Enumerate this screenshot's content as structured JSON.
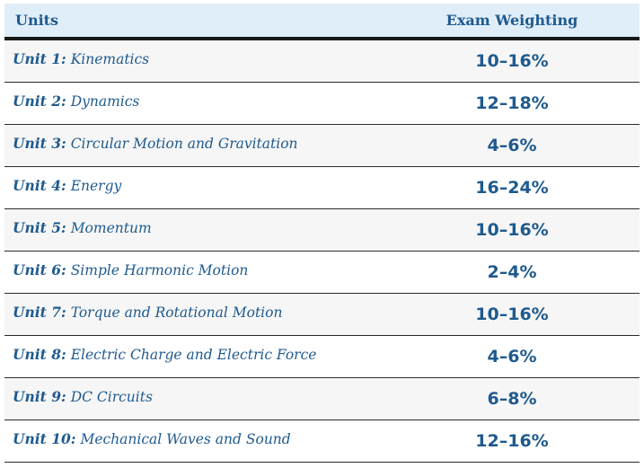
{
  "header": {
    "units_label": "Units",
    "weighting_label": "Exam Weighting"
  },
  "rows": [
    {
      "unit_number": "Unit 1:",
      "unit_title": "Kinematics",
      "weighting": "10–16%"
    },
    {
      "unit_number": "Unit 2:",
      "unit_title": "Dynamics",
      "weighting": "12–18%"
    },
    {
      "unit_number": "Unit 3:",
      "unit_title": "Circular Motion and Gravitation",
      "weighting": "4–6%"
    },
    {
      "unit_number": "Unit 4:",
      "unit_title": "Energy",
      "weighting": "16–24%"
    },
    {
      "unit_number": "Unit 5:",
      "unit_title": "Momentum",
      "weighting": "10–16%"
    },
    {
      "unit_number": "Unit 6:",
      "unit_title": "Simple Harmonic Motion",
      "weighting": "2–4%"
    },
    {
      "unit_number": "Unit 7:",
      "unit_title": "Torque and Rotational Motion",
      "weighting": "10–16%"
    },
    {
      "unit_number": "Unit 8:",
      "unit_title": "Electric Charge and Electric Force",
      "weighting": "4–6%"
    },
    {
      "unit_number": "Unit 9:",
      "unit_title": "DC Circuits",
      "weighting": "6–8%"
    },
    {
      "unit_number": "Unit 10:",
      "unit_title": "Mechanical Waves and Sound",
      "weighting": "12–16%"
    }
  ],
  "colors": {
    "header_background": "#dfeef9",
    "text": "#1f5a8e",
    "row_alt_background": "#f6f6f6"
  }
}
